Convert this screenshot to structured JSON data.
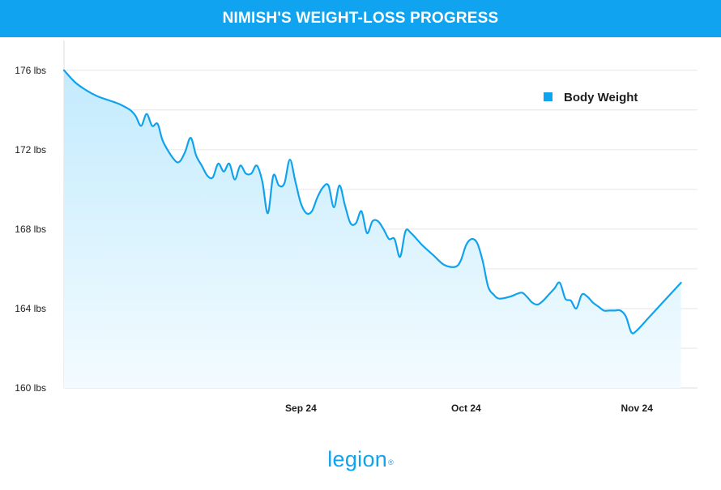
{
  "header": {
    "title": "NIMISH'S WEIGHT-LOSS PROGRESS"
  },
  "logo": {
    "text": "legion",
    "mark": "®"
  },
  "colors": {
    "accent": "#0fa3f0",
    "line": "#11a2ee",
    "fill": "#c6ecfd",
    "grid": "#e6e6e6"
  },
  "chart_data": {
    "type": "area",
    "title": "NIMISH'S WEIGHT-LOSS PROGRESS",
    "xlabel": "",
    "ylabel": "",
    "ylim": [
      160,
      177.5
    ],
    "xlim": [
      "2024-08-12",
      "2024-12-05"
    ],
    "yticks": [
      {
        "value": 160,
        "label": "160 lbs"
      },
      {
        "value": 164,
        "label": "164 lbs"
      },
      {
        "value": 168,
        "label": "168 lbs"
      },
      {
        "value": 172,
        "label": "172 lbs"
      },
      {
        "value": 176,
        "label": "176 lbs"
      }
    ],
    "grid_values": [
      162,
      164,
      166,
      168,
      170,
      172,
      174,
      176
    ],
    "xticks": [
      {
        "value": "2024-09-24",
        "label": "Sep 24"
      },
      {
        "value": "2024-10-24",
        "label": "Oct 24"
      },
      {
        "value": "2024-11-24",
        "label": "Nov 24"
      }
    ],
    "legend": {
      "position": "top-right",
      "entries": [
        "Body Weight"
      ]
    },
    "grid": true,
    "series": [
      {
        "name": "Body Weight",
        "points": [
          [
            "2024-08-12",
            176.0
          ],
          [
            "2024-08-14",
            175.4
          ],
          [
            "2024-08-16",
            175.0
          ],
          [
            "2024-08-18",
            174.7
          ],
          [
            "2024-08-20",
            174.5
          ],
          [
            "2024-08-22",
            174.3
          ],
          [
            "2024-08-24",
            174.0
          ],
          [
            "2024-08-25",
            173.7
          ],
          [
            "2024-08-26",
            173.2
          ],
          [
            "2024-08-27",
            173.8
          ],
          [
            "2024-08-28",
            173.2
          ],
          [
            "2024-08-29",
            173.3
          ],
          [
            "2024-08-30",
            172.4
          ],
          [
            "2024-09-01",
            171.5
          ],
          [
            "2024-09-02",
            171.4
          ],
          [
            "2024-09-03",
            171.9
          ],
          [
            "2024-09-04",
            172.6
          ],
          [
            "2024-09-05",
            171.7
          ],
          [
            "2024-09-06",
            171.2
          ],
          [
            "2024-09-07",
            170.7
          ],
          [
            "2024-09-08",
            170.6
          ],
          [
            "2024-09-09",
            171.3
          ],
          [
            "2024-09-10",
            170.9
          ],
          [
            "2024-09-11",
            171.3
          ],
          [
            "2024-09-12",
            170.5
          ],
          [
            "2024-09-13",
            171.2
          ],
          [
            "2024-09-14",
            170.8
          ],
          [
            "2024-09-15",
            170.8
          ],
          [
            "2024-09-16",
            171.2
          ],
          [
            "2024-09-17",
            170.4
          ],
          [
            "2024-09-18",
            168.8
          ],
          [
            "2024-09-19",
            170.7
          ],
          [
            "2024-09-20",
            170.2
          ],
          [
            "2024-09-21",
            170.3
          ],
          [
            "2024-09-22",
            171.5
          ],
          [
            "2024-09-23",
            170.4
          ],
          [
            "2024-09-24",
            169.3
          ],
          [
            "2024-09-25",
            168.8
          ],
          [
            "2024-09-26",
            168.9
          ],
          [
            "2024-09-27",
            169.6
          ],
          [
            "2024-09-28",
            170.1
          ],
          [
            "2024-09-29",
            170.2
          ],
          [
            "2024-09-30",
            169.1
          ],
          [
            "2024-10-01",
            170.2
          ],
          [
            "2024-10-02",
            169.2
          ],
          [
            "2024-10-03",
            168.3
          ],
          [
            "2024-10-04",
            168.3
          ],
          [
            "2024-10-05",
            168.9
          ],
          [
            "2024-10-06",
            167.8
          ],
          [
            "2024-10-07",
            168.4
          ],
          [
            "2024-10-08",
            168.4
          ],
          [
            "2024-10-09",
            168.0
          ],
          [
            "2024-10-10",
            167.5
          ],
          [
            "2024-10-11",
            167.5
          ],
          [
            "2024-10-12",
            166.6
          ],
          [
            "2024-10-13",
            167.9
          ],
          [
            "2024-10-14",
            167.8
          ],
          [
            "2024-10-16",
            167.2
          ],
          [
            "2024-10-18",
            166.7
          ],
          [
            "2024-10-20",
            166.2
          ],
          [
            "2024-10-22",
            166.1
          ],
          [
            "2024-10-23",
            166.4
          ],
          [
            "2024-10-24",
            167.2
          ],
          [
            "2024-10-25",
            167.5
          ],
          [
            "2024-10-26",
            167.3
          ],
          [
            "2024-10-27",
            166.4
          ],
          [
            "2024-10-28",
            165.1
          ],
          [
            "2024-10-29",
            164.7
          ],
          [
            "2024-10-30",
            164.5
          ],
          [
            "2024-11-01",
            164.6
          ],
          [
            "2024-11-03",
            164.8
          ],
          [
            "2024-11-04",
            164.6
          ],
          [
            "2024-11-05",
            164.3
          ],
          [
            "2024-11-06",
            164.2
          ],
          [
            "2024-11-07",
            164.4
          ],
          [
            "2024-11-08",
            164.7
          ],
          [
            "2024-11-09",
            165.0
          ],
          [
            "2024-11-10",
            165.3
          ],
          [
            "2024-11-11",
            164.5
          ],
          [
            "2024-11-12",
            164.4
          ],
          [
            "2024-11-13",
            164.0
          ],
          [
            "2024-11-14",
            164.7
          ],
          [
            "2024-11-15",
            164.6
          ],
          [
            "2024-11-16",
            164.3
          ],
          [
            "2024-11-17",
            164.1
          ],
          [
            "2024-11-18",
            163.9
          ],
          [
            "2024-11-19",
            163.9
          ],
          [
            "2024-11-20",
            163.9
          ],
          [
            "2024-11-21",
            163.9
          ],
          [
            "2024-11-22",
            163.6
          ],
          [
            "2024-11-23",
            162.8
          ],
          [
            "2024-11-24",
            162.9
          ],
          [
            "2024-11-26",
            163.5
          ],
          [
            "2024-11-28",
            164.1
          ],
          [
            "2024-11-30",
            164.7
          ],
          [
            "2024-12-02",
            165.3
          ]
        ]
      }
    ]
  }
}
